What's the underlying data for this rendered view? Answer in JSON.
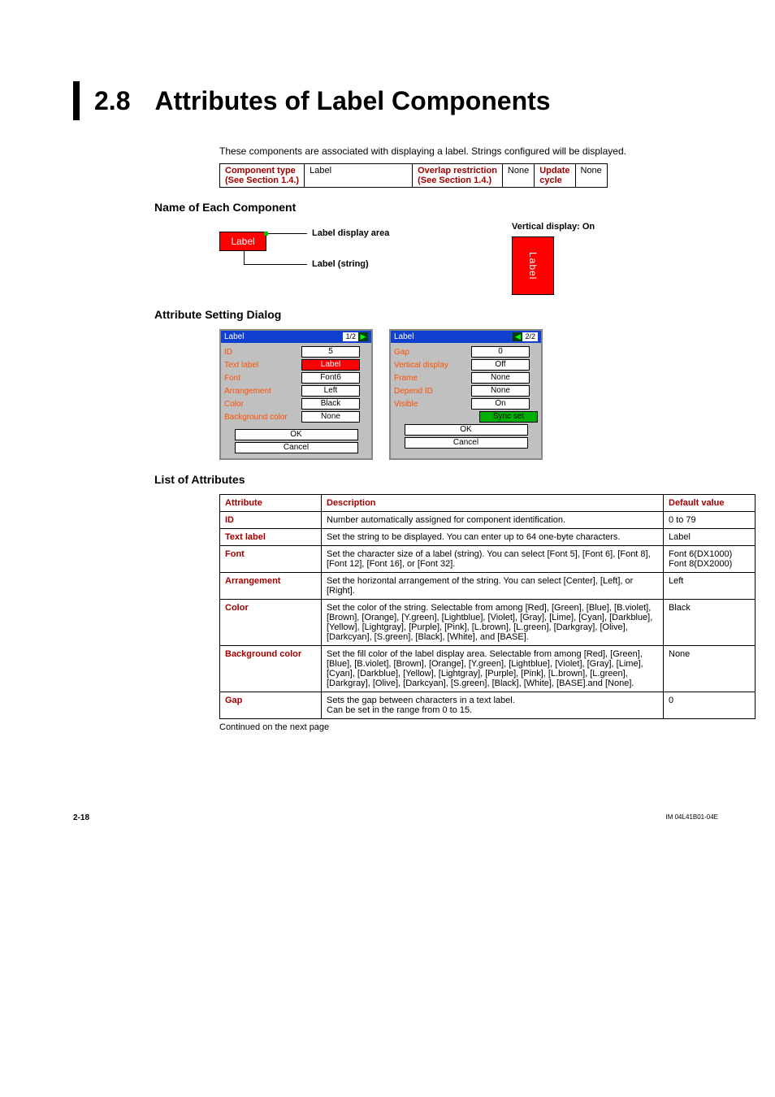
{
  "chapter": {
    "number": "2.8",
    "title": "Attributes of Label Components"
  },
  "intro": "These components are associated with displaying a label. Strings configured will be displayed.",
  "typeTable": {
    "h1": "Component type",
    "v1": "Label",
    "h2": "Overlap restriction",
    "v2": "None",
    "h3": "Update",
    "v3": "None",
    "sub1": "(See Section 1.4.)",
    "sub2": "(See Section 1.4.)",
    "sub3": "cycle"
  },
  "sections": {
    "nameEach": "Name of Each Component",
    "attrDialog": "Attribute Setting Dialog",
    "listAttr": "List of Attributes"
  },
  "diagram": {
    "labelText": "Label",
    "anno1": "Label display area",
    "anno2": "Label (string)",
    "verticalTitle": "Vertical display: On",
    "verticalText": "Label"
  },
  "dialog1": {
    "title": "Label",
    "page": "1/2",
    "rows": [
      {
        "l": "ID",
        "v": "5",
        "red": false
      },
      {
        "l": "Text label",
        "v": "Label",
        "red": true
      },
      {
        "l": "Font",
        "v": "Font6",
        "red": false
      },
      {
        "l": "Arrangement",
        "v": "Left",
        "red": false
      },
      {
        "l": "Color",
        "v": "Black",
        "red": false
      },
      {
        "l": "Background color",
        "v": "None",
        "red": false
      }
    ],
    "ok": "OK",
    "cancel": "Cancel"
  },
  "dialog2": {
    "title": "Label",
    "page": "2/2",
    "rows": [
      {
        "l": "Gap",
        "v": "0"
      },
      {
        "l": "Vertical display",
        "v": "Off"
      },
      {
        "l": "Frame",
        "v": "None"
      },
      {
        "l": "Depend ID",
        "v": "None"
      },
      {
        "l": "Visible",
        "v": "On"
      }
    ],
    "sync": "Sync set",
    "ok": "OK",
    "cancel": "Cancel"
  },
  "attrTable": {
    "headers": {
      "a": "Attribute",
      "d": "Description",
      "v": "Default value"
    },
    "rows": [
      {
        "a": "ID",
        "d": "Number automatically assigned for component identification.",
        "v": "0 to 79"
      },
      {
        "a": "Text label",
        "d": "Set the string to be displayed. You can enter up to 64 one-byte characters.",
        "v": "Label"
      },
      {
        "a": "Font",
        "d": "Set the character size of a label (string). You can select [Font 5], [Font 6], [Font 8], [Font 12], [Font 16], or [Font 32].",
        "v": "Font 6(DX1000)\nFont 8(DX2000)"
      },
      {
        "a": "Arrangement",
        "d": "Set the horizontal arrangement of the string. You can select [Center], [Left], or [Right].",
        "v": "Left"
      },
      {
        "a": "Color",
        "d": "Set the color of the string. Selectable from among [Red], [Green], [Blue], [B.violet], [Brown], [Orange], [Y.green], [Lightblue], [Violet], [Gray], [Lime], [Cyan], [Darkblue], [Yellow], [Lightgray], [Purple], [Pink], [L.brown], [L.green], [Darkgray], [Olive], [Darkcyan], [S.green], [Black], [White], and [BASE].",
        "v": "Black"
      },
      {
        "a": "Background color",
        "d": "Set the fill color of the label display area. Selectable from among [Red], [Green], [Blue], [B.violet], [Brown], [Orange], [Y.green], [Lightblue], [Violet], [Gray], [Lime], [Cyan], [Darkblue], [Yellow], [Lightgray], [Purple], [Pink], [L.brown], [L.green], [Darkgray], [Olive], [Darkcyan], [S.green], [Black], [White], [BASE].and [None].",
        "v": "None"
      },
      {
        "a": "Gap",
        "d": "Sets the gap between characters in a text label.\nCan be set in the range from 0 to 15.",
        "v": "0"
      }
    ]
  },
  "continued": "Continued on the next page",
  "footer": {
    "left": "2-18",
    "right": "IM 04L41B01-04E"
  }
}
